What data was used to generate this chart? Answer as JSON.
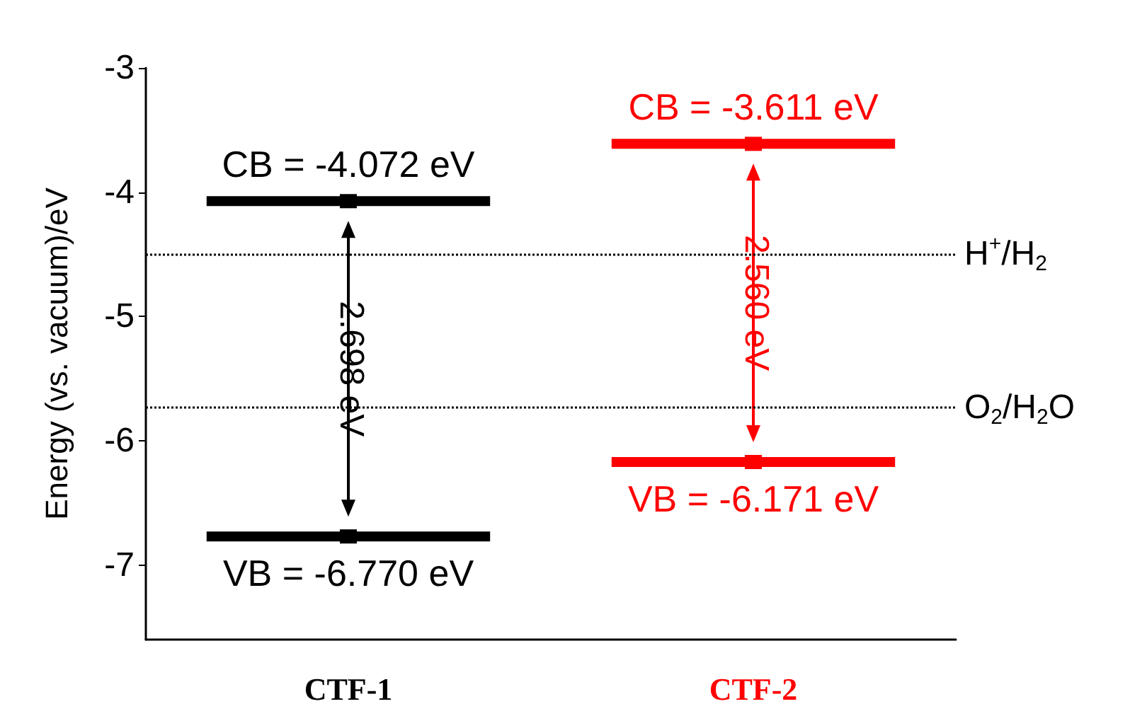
{
  "chart_data": {
    "type": "scatter",
    "categories": [
      "CTF-1",
      "CTF-2"
    ],
    "series": [
      {
        "colors": [
          "#000000",
          "#ff0000"
        ],
        "values": [
          -4.072,
          -3.611
        ],
        "value_labels": [
          "CB = -4.072 eV",
          "CB = -3.611 eV"
        ]
      },
      {
        "colors": [
          "#000000",
          "#ff0000"
        ],
        "values": [
          -6.77,
          -6.171
        ],
        "value_labels": [
          "VB = -6.770 eV",
          "VB = -6.171 eV"
        ]
      }
    ],
    "ylabel": "Energy (vs. vacuum)/eV",
    "ylim": [
      -7.6,
      -3
    ],
    "yticks": [
      -7,
      -6,
      -5,
      -4,
      -3
    ],
    "grid": false,
    "ref_lines": [
      {
        "axis": "y",
        "value": -4.5,
        "label": "H$^{+}$/H$_{2}$",
        "line_style": "dotted",
        "color": "#000000"
      },
      {
        "axis": "y",
        "value": -5.73,
        "label": "O$_{2}$/H$_{2}$O",
        "line_style": "dotted",
        "color": "#000000"
      }
    ],
    "annotations": [
      "2.698 eV",
      "2.560 eV"
    ]
  }
}
